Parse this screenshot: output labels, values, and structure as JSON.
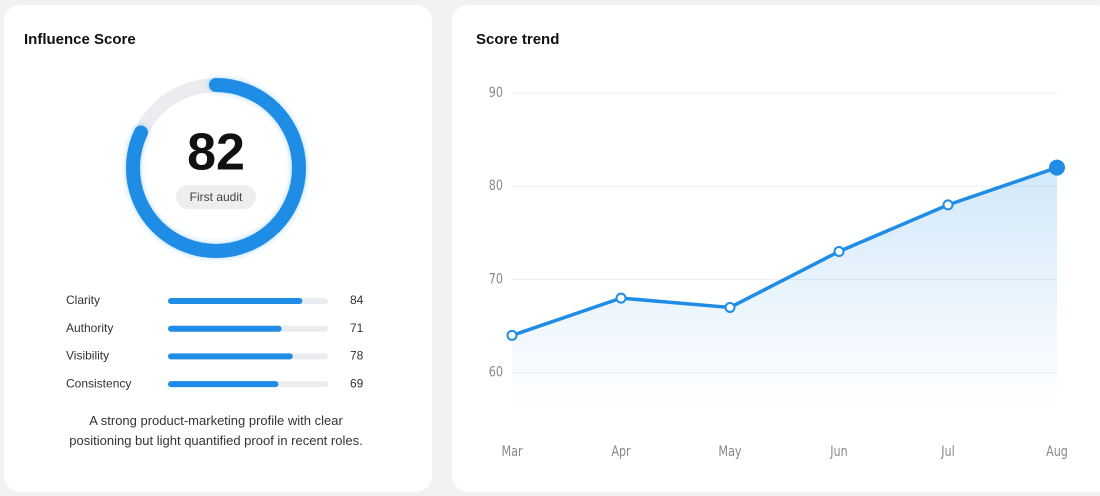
{
  "chart_data": [
    {
      "type": "gauge",
      "title": "Influence Score",
      "value": 82,
      "label": "First audit",
      "lim": [
        0,
        100
      ],
      "caption": "A strong product-marketing profile with clear positioning but light quantified proof in recent roles.",
      "color": "#1f8ce6"
    },
    {
      "type": "hbar",
      "categories": [
        "Clarity",
        "Authority",
        "Visibility",
        "Consistency"
      ],
      "values": [
        84,
        71,
        78,
        69
      ],
      "xlim": [
        0,
        100
      ],
      "color": "#1f8ce6"
    },
    {
      "type": "line",
      "title": "Score trend",
      "categories": [
        "Mar",
        "Apr",
        "May",
        "Jun",
        "Jul",
        "Aug"
      ],
      "values": [
        64,
        68,
        67,
        73,
        78,
        82
      ],
      "ylim": [
        56,
        90
      ],
      "yticks": [
        60,
        70,
        80,
        90
      ],
      "grid": true,
      "color": "#1f8ce6"
    }
  ]
}
